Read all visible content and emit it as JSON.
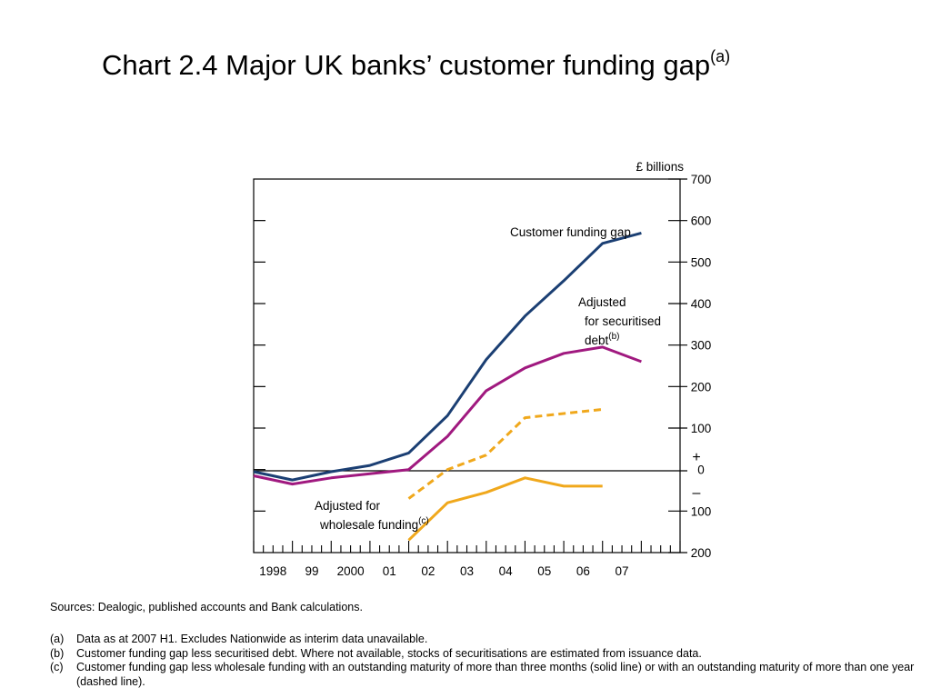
{
  "title": {
    "text": "Chart 2.4  Major UK banks’ customer funding gap",
    "superscript": "(a)"
  },
  "chart_data": {
    "type": "line",
    "title": "Chart 2.4  Major UK banks’ customer funding gap",
    "unit_label": "£ billions",
    "ylim": [
      -200,
      700
    ],
    "y_ticks": [
      {
        "value": 700,
        "label": "700"
      },
      {
        "value": 600,
        "label": "600"
      },
      {
        "value": 500,
        "label": "500"
      },
      {
        "value": 400,
        "label": "400"
      },
      {
        "value": 300,
        "label": "300"
      },
      {
        "value": 200,
        "label": "200"
      },
      {
        "value": 100,
        "label": "100"
      },
      {
        "value": 0,
        "label": "0"
      },
      {
        "value": -100,
        "label": "100"
      },
      {
        "value": -200,
        "label": "200"
      }
    ],
    "sign_plus": "+",
    "sign_minus": "–",
    "xlim": [
      1997.5,
      2008.5
    ],
    "x_labels": [
      {
        "x": 1998.0,
        "label": "1998"
      },
      {
        "x": 1999.0,
        "label": "99"
      },
      {
        "x": 2000.0,
        "label": "2000"
      },
      {
        "x": 2001.0,
        "label": "01"
      },
      {
        "x": 2002.0,
        "label": "02"
      },
      {
        "x": 2003.0,
        "label": "03"
      },
      {
        "x": 2004.0,
        "label": "04"
      },
      {
        "x": 2005.0,
        "label": "05"
      },
      {
        "x": 2006.0,
        "label": "06"
      },
      {
        "x": 2007.0,
        "label": "07"
      }
    ],
    "grid": false,
    "series": [
      {
        "name": "Customer funding gap",
        "color": "#1b3f73",
        "style": "solid",
        "points": [
          [
            1997.5,
            -5
          ],
          [
            1998.5,
            -25
          ],
          [
            1999.5,
            -5
          ],
          [
            2000.5,
            10
          ],
          [
            2001.5,
            40
          ],
          [
            2002.5,
            130
          ],
          [
            2003.5,
            265
          ],
          [
            2004.5,
            370
          ],
          [
            2005.5,
            455
          ],
          [
            2006.5,
            545
          ],
          [
            2007.5,
            570
          ]
        ]
      },
      {
        "name": "Adjusted for securitised debt",
        "name_lines": [
          "Adjusted",
          "for securitised",
          "debt"
        ],
        "superscript": "(b)",
        "color": "#a0197f",
        "style": "solid",
        "points": [
          [
            1997.5,
            -15
          ],
          [
            1998.5,
            -35
          ],
          [
            1999.5,
            -20
          ],
          [
            2000.5,
            -10
          ],
          [
            2001.5,
            0
          ],
          [
            2002.5,
            80
          ],
          [
            2003.5,
            190
          ],
          [
            2004.5,
            245
          ],
          [
            2005.5,
            280
          ],
          [
            2006.5,
            295
          ],
          [
            2007.5,
            260
          ]
        ]
      },
      {
        "name": "Adjusted for wholesale funding",
        "name_lines": [
          "Adjusted for",
          "wholesale funding"
        ],
        "superscript": "(c)",
        "color": "#f0a81c",
        "style": "dashed",
        "points": [
          [
            2001.5,
            -70
          ],
          [
            2002.5,
            0
          ],
          [
            2003.5,
            35
          ],
          [
            2004.5,
            125
          ],
          [
            2005.5,
            135
          ],
          [
            2006.5,
            145
          ]
        ]
      },
      {
        "name": "Adjusted for wholesale funding",
        "color": "#f0a81c",
        "style": "solid",
        "points": [
          [
            2001.5,
            -170
          ],
          [
            2002.5,
            -80
          ],
          [
            2003.5,
            -55
          ],
          [
            2004.5,
            -20
          ],
          [
            2005.5,
            -40
          ],
          [
            2006.5,
            -40
          ]
        ]
      }
    ]
  },
  "sources": "Sources:  Dealogic, published accounts and Bank calculations.",
  "notes": [
    {
      "mark": "(a)",
      "text": "Data as at 2007 H1.  Excludes Nationwide as interim data unavailable."
    },
    {
      "mark": "(b)",
      "text": "Customer funding gap less securitised debt.  Where not available, stocks of securitisations are estimated from issuance data."
    },
    {
      "mark": "(c)",
      "text": "Customer funding gap less wholesale funding with an outstanding maturity of more than three months (solid line) or with an outstanding maturity of more than one year (dashed line)."
    }
  ]
}
